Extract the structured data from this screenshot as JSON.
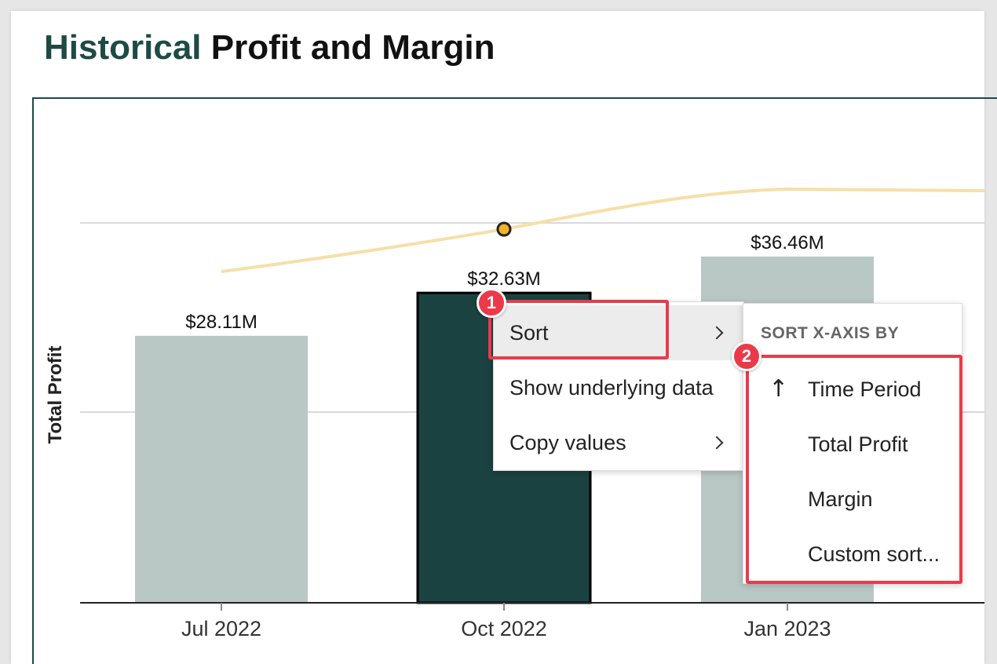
{
  "title": {
    "accent": "Historical",
    "rest": "Profit and Margin"
  },
  "chart_data": {
    "type": "bar",
    "categories": [
      "Jul 2022",
      "Oct 2022",
      "Jan 2023"
    ],
    "values": [
      28.11,
      32.63,
      36.46
    ],
    "value_labels": [
      "$28.11M",
      "$32.63M",
      "$36.46M"
    ],
    "selected_index": 1,
    "ylabel": "Total Profit",
    "xlabel": "",
    "colors": {
      "bar": "#b9c7c5",
      "selected_bar": "#1a4240",
      "margin_line": "#f6dfa8",
      "marker": "#f2b327"
    }
  },
  "context_menu": {
    "items": [
      {
        "label": "Sort",
        "has_submenu": true,
        "active": true
      },
      {
        "label": "Show underlying data",
        "has_submenu": false
      },
      {
        "label": "Copy values",
        "has_submenu": true
      }
    ]
  },
  "sort_submenu": {
    "header": "SORT X-AXIS BY",
    "items": [
      {
        "label": "Time Period",
        "icon": "arrow-up-icon"
      },
      {
        "label": "Total Profit"
      },
      {
        "label": "Margin"
      },
      {
        "label": "Custom sort..."
      }
    ]
  },
  "annotations": {
    "badge_1": "1",
    "badge_2": "2",
    "highlight_color": "#ea3a4a"
  }
}
